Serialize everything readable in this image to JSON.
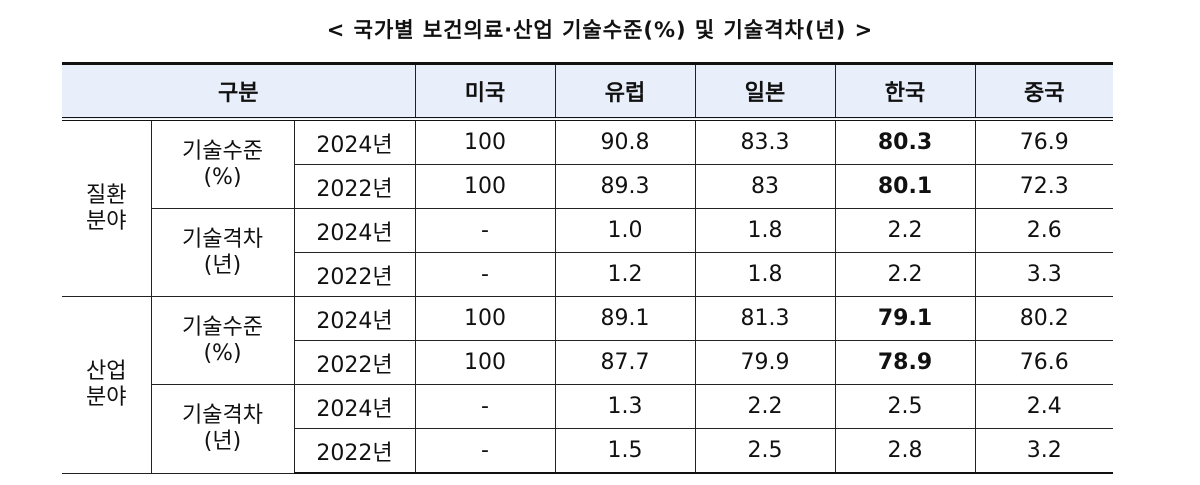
{
  "title": "< 국가별 보건의료·산업 기술수준(%) 및 기술격차(년) >",
  "header": {
    "category": "구분",
    "countries": [
      "미국",
      "유럽",
      "일본",
      "한국",
      "중국"
    ]
  },
  "groups": [
    {
      "name": "질환 분야",
      "sub": [
        {
          "name": "기술수준 (%)",
          "rows": [
            {
              "year": "2024년",
              "values": [
                "100",
                "90.8",
                "83.3",
                "80.3",
                "76.9"
              ]
            },
            {
              "year": "2022년",
              "values": [
                "100",
                "89.3",
                "83",
                "80.1",
                "72.3"
              ]
            }
          ]
        },
        {
          "name": "기술격차 (년)",
          "rows": [
            {
              "year": "2024년",
              "values": [
                "-",
                "1.0",
                "1.8",
                "2.2",
                "2.6"
              ]
            },
            {
              "year": "2022년",
              "values": [
                "-",
                "1.2",
                "1.8",
                "2.2",
                "3.3"
              ]
            }
          ]
        }
      ]
    },
    {
      "name": "산업 분야",
      "sub": [
        {
          "name": "기술수준 (%)",
          "rows": [
            {
              "year": "2024년",
              "values": [
                "100",
                "89.1",
                "81.3",
                "79.1",
                "80.2"
              ]
            },
            {
              "year": "2022년",
              "values": [
                "100",
                "87.7",
                "79.9",
                "78.9",
                "76.6"
              ]
            }
          ]
        },
        {
          "name": "기술격차 (년)",
          "rows": [
            {
              "year": "2024년",
              "values": [
                "-",
                "1.3",
                "2.2",
                "2.5",
                "2.4"
              ]
            },
            {
              "year": "2022년",
              "values": [
                "-",
                "1.5",
                "2.5",
                "2.8",
                "3.2"
              ]
            }
          ]
        }
      ]
    }
  ],
  "colors": {
    "header_bg": "#e9effa"
  }
}
